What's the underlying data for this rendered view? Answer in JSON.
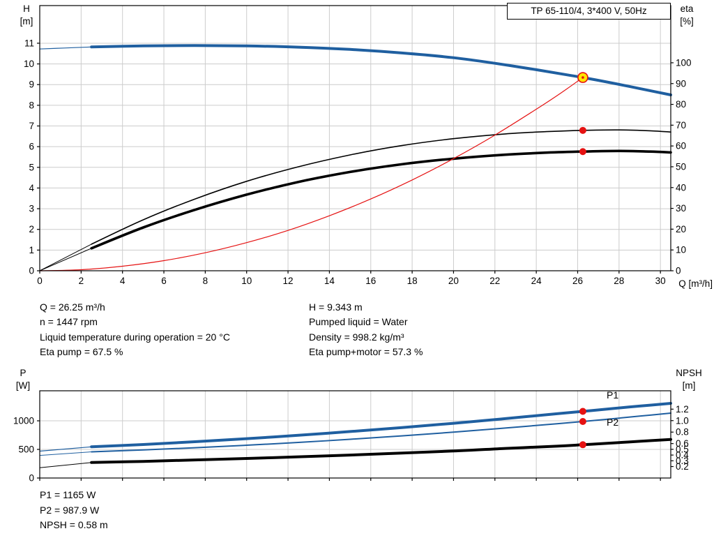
{
  "colors": {
    "blue": "#1f5fa0",
    "black": "#000000",
    "red": "#e51212",
    "yellow": "#ffe400",
    "grid": "#cccccc"
  },
  "info_panel": {
    "left": [
      "Q = 26.25 m³/h",
      "n = 1447 rpm",
      "Liquid temperature during operation = 20 °C",
      "Eta pump = 67.5 %"
    ],
    "right": [
      "H = 9.343 m",
      "Pumped liquid = Water",
      "Density = 998.2 kg/m³",
      "Eta pump+motor = 57.3 %"
    ]
  },
  "results_panel": [
    "P1 = 1165 W",
    "P2 = 987.9 W",
    "NPSH = 0.58 m"
  ],
  "chart_data": {
    "type": "line",
    "charts": [
      {
        "id": "head",
        "title": "TP 65-110/4, 3*400 V, 50Hz",
        "x": {
          "label": "Q [m³/h]",
          "min": 0,
          "max": 30.5,
          "grid": true,
          "ticks": [
            [
              0,
              "0"
            ],
            [
              2,
              "2"
            ],
            [
              4,
              "4"
            ],
            [
              6,
              "6"
            ],
            [
              8,
              "8"
            ],
            [
              10,
              "10"
            ],
            [
              12,
              "12"
            ],
            [
              14,
              "14"
            ],
            [
              16,
              "16"
            ],
            [
              18,
              "18"
            ],
            [
              20,
              "20"
            ],
            [
              22,
              "22"
            ],
            [
              24,
              "24"
            ],
            [
              26,
              "26"
            ],
            [
              28,
              "28"
            ],
            [
              30,
              "30"
            ]
          ]
        },
        "left": {
          "title": [
            "H",
            "[m]"
          ],
          "min": 0,
          "max": 12.82,
          "grid": true,
          "ticks": [
            [
              0,
              "0"
            ],
            [
              1,
              "1"
            ],
            [
              2,
              "2"
            ],
            [
              3,
              "3"
            ],
            [
              4,
              "4"
            ],
            [
              5,
              "5"
            ],
            [
              6,
              "6"
            ],
            [
              7,
              "7"
            ],
            [
              8,
              "8"
            ],
            [
              9,
              "9"
            ],
            [
              10,
              "10"
            ],
            [
              11,
              "11"
            ]
          ]
        },
        "right": {
          "title": [
            "eta",
            "[%]"
          ],
          "min": 0,
          "max": 127.5,
          "grid": false,
          "ticks": [
            [
              0,
              "0"
            ],
            [
              10,
              "10"
            ],
            [
              20,
              "20"
            ],
            [
              30,
              "30"
            ],
            [
              40,
              "40"
            ],
            [
              50,
              "50"
            ],
            [
              60,
              "60"
            ],
            [
              70,
              "70"
            ],
            [
              80,
              "80"
            ],
            [
              90,
              "90"
            ],
            [
              100,
              "100"
            ]
          ]
        },
        "series": [
          {
            "name": "hq-lead",
            "color": "blue",
            "width": 1.2,
            "axis": "left",
            "points": [
              [
                0,
                10.72
              ],
              [
                1.2,
                10.77
              ],
              [
                2.5,
                10.82
              ]
            ]
          },
          {
            "name": "hq-curve",
            "color": "blue",
            "width": 4,
            "axis": "left",
            "points": [
              [
                2.5,
                10.82
              ],
              [
                5,
                10.87
              ],
              [
                7.5,
                10.89
              ],
              [
                10,
                10.87
              ],
              [
                12.5,
                10.81
              ],
              [
                15,
                10.7
              ],
              [
                17.5,
                10.53
              ],
              [
                20,
                10.3
              ],
              [
                22,
                10.03
              ],
              [
                24,
                9.72
              ],
              [
                25.5,
                9.47
              ],
              [
                26.25,
                9.343
              ],
              [
                27.5,
                9.11
              ],
              [
                29,
                8.81
              ],
              [
                30.5,
                8.5
              ]
            ]
          },
          {
            "name": "eta-pump-lead",
            "color": "black",
            "width": 1,
            "axis": "right",
            "points": [
              [
                0,
                0
              ],
              [
                2.5,
                12.8
              ]
            ]
          },
          {
            "name": "eta-pump-curve",
            "color": "black",
            "width": 1.6,
            "axis": "right",
            "points": [
              [
                2.5,
                12.8
              ],
              [
                5,
                24.5
              ],
              [
                7.5,
                34.5
              ],
              [
                10,
                43
              ],
              [
                12.5,
                50
              ],
              [
                15,
                55.7
              ],
              [
                17.5,
                60.2
              ],
              [
                20,
                63.5
              ],
              [
                22.5,
                65.8
              ],
              [
                24.5,
                66.9
              ],
              [
                26.25,
                67.5
              ],
              [
                28,
                67.7
              ],
              [
                29.5,
                67.3
              ],
              [
                30.5,
                66.7
              ]
            ]
          },
          {
            "name": "eta-pump-motor-lead",
            "color": "black",
            "width": 1,
            "axis": "right",
            "points": [
              [
                0,
                0
              ],
              [
                2.5,
                10.8
              ]
            ]
          },
          {
            "name": "eta-pump-motor-curve",
            "color": "black",
            "width": 3.6,
            "axis": "right",
            "points": [
              [
                2.5,
                10.8
              ],
              [
                5,
                20.8
              ],
              [
                7.5,
                29.3
              ],
              [
                10,
                36.6
              ],
              [
                12.5,
                42.7
              ],
              [
                15,
                47.5
              ],
              [
                17.5,
                51.2
              ],
              [
                20,
                53.9
              ],
              [
                22.5,
                55.8
              ],
              [
                24.5,
                56.8
              ],
              [
                26.25,
                57.3
              ],
              [
                28,
                57.6
              ],
              [
                29.5,
                57.3
              ],
              [
                30.5,
                56.9
              ]
            ]
          },
          {
            "name": "system-curve",
            "color": "red",
            "width": 1.2,
            "axis": "left",
            "points": [
              [
                0,
                0
              ],
              [
                2,
                0.05
              ],
              [
                4,
                0.22
              ],
              [
                6,
                0.49
              ],
              [
                8,
                0.87
              ],
              [
                10,
                1.36
              ],
              [
                12,
                1.95
              ],
              [
                14,
                2.66
              ],
              [
                16,
                3.47
              ],
              [
                18,
                4.39
              ],
              [
                20,
                5.42
              ],
              [
                22,
                6.56
              ],
              [
                24,
                7.81
              ],
              [
                25.2,
                8.6
              ],
              [
                26.25,
                9.343
              ]
            ]
          }
        ],
        "markers": [
          {
            "style": "duty",
            "q": 26.25,
            "v": 9.343,
            "axis": "left"
          },
          {
            "style": "dot",
            "q": 26.25,
            "v": 67.5,
            "axis": "right"
          },
          {
            "style": "dot",
            "q": 26.25,
            "v": 57.3,
            "axis": "right"
          }
        ]
      },
      {
        "id": "power",
        "x": {
          "label": "",
          "min": 0,
          "max": 30.5,
          "grid": true,
          "ticks": [
            [
              0,
              "0"
            ],
            [
              2,
              "2"
            ],
            [
              4,
              "4"
            ],
            [
              6,
              "6"
            ],
            [
              8,
              "8"
            ],
            [
              10,
              "10"
            ],
            [
              12,
              "12"
            ],
            [
              14,
              "14"
            ],
            [
              16,
              "16"
            ],
            [
              18,
              "18"
            ],
            [
              20,
              "20"
            ],
            [
              22,
              "22"
            ],
            [
              24,
              "24"
            ],
            [
              26,
              "26"
            ],
            [
              28,
              "28"
            ],
            [
              30,
              "30"
            ]
          ]
        },
        "left": {
          "title": [
            "P",
            "[W]"
          ],
          "min": 0,
          "max": 1525,
          "grid": true,
          "ticks": [
            [
              0,
              "0"
            ],
            [
              500,
              "500"
            ],
            [
              1000,
              "1000"
            ]
          ]
        },
        "right": {
          "title": [
            "NPSH",
            "[m]"
          ],
          "min": 0,
          "max": 1.52,
          "grid": false,
          "ticks": [
            [
              0.2,
              "0.2"
            ],
            [
              0.3,
              "0.3"
            ],
            [
              0.4,
              "0.4"
            ],
            [
              0.5,
              "0.5"
            ],
            [
              0.6,
              "0.6"
            ],
            [
              0.8,
              "0.8"
            ],
            [
              1.0,
              "1.0"
            ],
            [
              1.2,
              "1.2"
            ]
          ]
        },
        "series": [
          {
            "name": "p1-lead",
            "color": "blue",
            "width": 1.2,
            "axis": "left",
            "points": [
              [
                0,
                470
              ],
              [
                2.5,
                545
              ]
            ]
          },
          {
            "name": "p1-curve",
            "color": "blue",
            "width": 4,
            "axis": "left",
            "points": [
              [
                2.5,
                545
              ],
              [
                5,
                586
              ],
              [
                7.5,
                634
              ],
              [
                10,
                688
              ],
              [
                12.5,
                747
              ],
              [
                15,
                812
              ],
              [
                17.5,
                882
              ],
              [
                20,
                957
              ],
              [
                22.5,
                1038
              ],
              [
                25,
                1124
              ],
              [
                26.25,
                1165
              ],
              [
                27.5,
                1208
              ],
              [
                29,
                1258
              ],
              [
                30.5,
                1305
              ]
            ]
          },
          {
            "name": "p2-lead",
            "color": "blue",
            "width": 1,
            "axis": "left",
            "points": [
              [
                0,
                395
              ],
              [
                2.5,
                458
              ]
            ]
          },
          {
            "name": "p2-curve",
            "color": "blue",
            "width": 2,
            "axis": "left",
            "points": [
              [
                2.5,
                458
              ],
              [
                5,
                491
              ],
              [
                7.5,
                529
              ],
              [
                10,
                573
              ],
              [
                12.5,
                622
              ],
              [
                15,
                677
              ],
              [
                17.5,
                737
              ],
              [
                20,
                802
              ],
              [
                22.5,
                873
              ],
              [
                25,
                949
              ],
              [
                26.25,
                988
              ],
              [
                27.5,
                1030
              ],
              [
                29,
                1082
              ],
              [
                30.5,
                1135
              ]
            ]
          },
          {
            "name": "npsh-lead",
            "color": "black",
            "width": 1,
            "axis": "right",
            "points": [
              [
                0,
                0.18
              ],
              [
                2.5,
                0.27
              ]
            ]
          },
          {
            "name": "npsh-curve",
            "color": "black",
            "width": 4,
            "axis": "right",
            "points": [
              [
                2.5,
                0.27
              ],
              [
                5,
                0.29
              ],
              [
                7.5,
                0.315
              ],
              [
                10,
                0.34
              ],
              [
                12.5,
                0.37
              ],
              [
                15,
                0.4
              ],
              [
                17.5,
                0.435
              ],
              [
                20,
                0.47
              ],
              [
                22.5,
                0.515
              ],
              [
                25,
                0.555
              ],
              [
                26.25,
                0.58
              ],
              [
                27.5,
                0.607
              ],
              [
                29,
                0.64
              ],
              [
                30.5,
                0.672
              ]
            ]
          }
        ],
        "labels": [
          {
            "text": "P1",
            "q": 27.4,
            "v": 1390,
            "axis": "left",
            "color": "blue"
          },
          {
            "text": "P2",
            "q": 27.4,
            "v": 915,
            "axis": "left",
            "color": "blue"
          }
        ],
        "markers": [
          {
            "style": "dot",
            "q": 26.25,
            "v": 1165,
            "axis": "left"
          },
          {
            "style": "dot",
            "q": 26.25,
            "v": 987.9,
            "axis": "left"
          },
          {
            "style": "dot",
            "q": 26.25,
            "v": 0.58,
            "axis": "right"
          }
        ]
      }
    ]
  }
}
